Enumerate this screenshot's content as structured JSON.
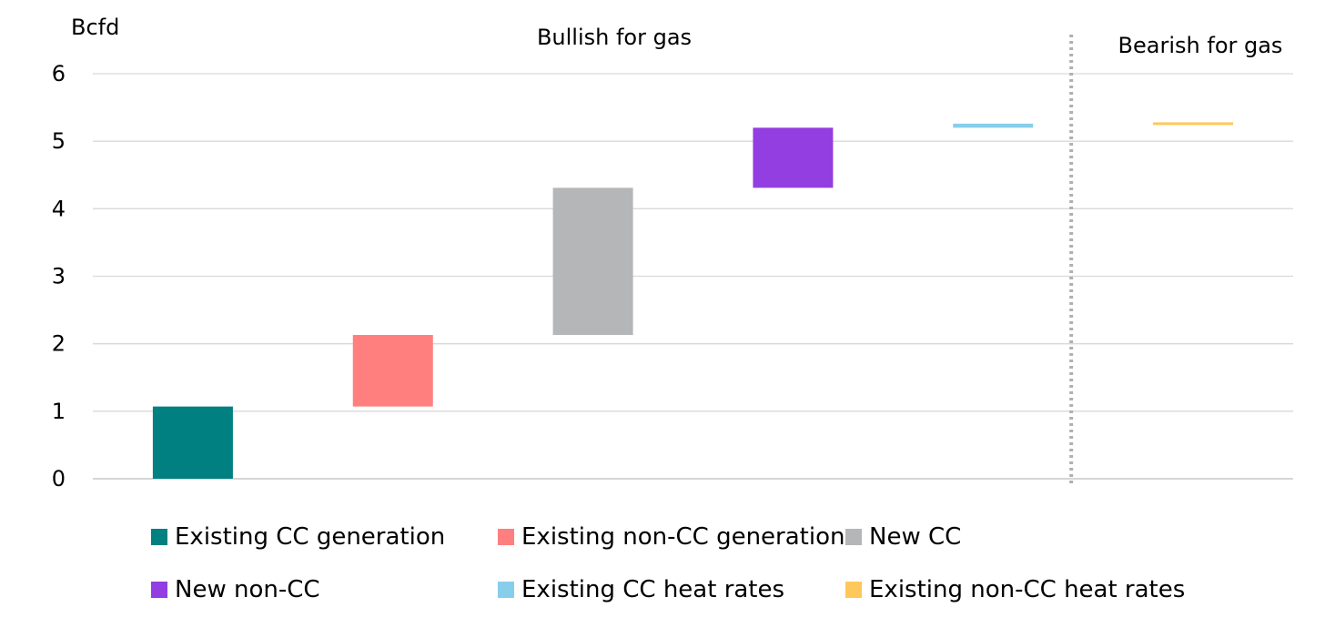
{
  "chart_data": {
    "type": "bar",
    "subtype": "waterfall",
    "ylabel": "Bcfd",
    "ylim": [
      0,
      6
    ],
    "yticks": [
      0,
      1,
      2,
      3,
      4,
      5,
      6
    ],
    "grid": true,
    "annotations": [
      "Bullish for gas",
      "Bearish for gas"
    ],
    "divider_after_category_index": 4,
    "series": [
      {
        "name": "Existing CC generation",
        "base": 0,
        "top": 1.07,
        "color": "#008080"
      },
      {
        "name": "Existing non-CC generation",
        "base": 1.07,
        "top": 2.13,
        "color": "#FF7F7F"
      },
      {
        "name": "New CC",
        "base": 2.13,
        "top": 4.31,
        "color": "#B5B6B7"
      },
      {
        "name": "New non-CC",
        "base": 4.31,
        "top": 5.2,
        "color": "#923EE0"
      },
      {
        "name": "Existing CC heat rates",
        "base": 5.2,
        "top": 5.26,
        "color": "#87CEEB"
      },
      {
        "name": "Existing non-CC heat rates",
        "base": 5.26,
        "top": 5.28,
        "color": "#FFC85A"
      }
    ]
  }
}
